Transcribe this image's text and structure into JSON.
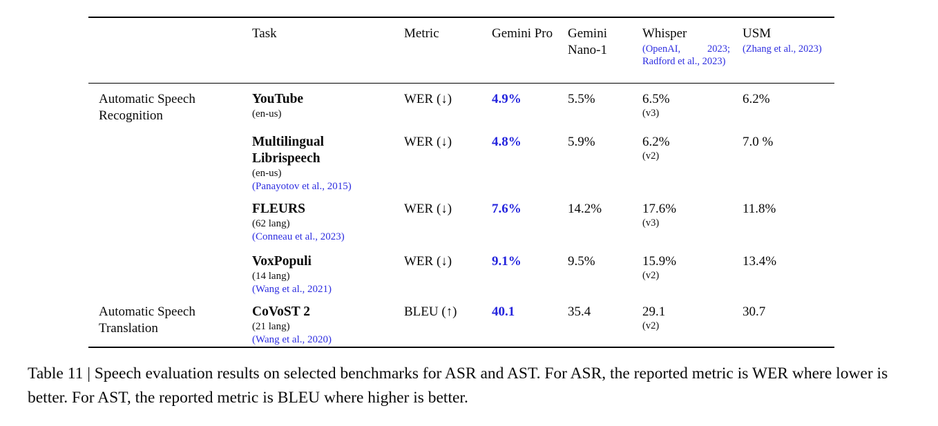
{
  "colors": {
    "link_blue": "#2d2de0",
    "best_value_blue": "#2424dd",
    "rule_black": "#000000"
  },
  "table": {
    "headers": {
      "group": "",
      "task": "Task",
      "metric": "Metric",
      "gemini_pro": "Gemini Pro",
      "gemini_nano": "Gemini Nano-1",
      "whisper_name": "Whisper",
      "whisper_citation": "(OpenAI, 2023; Radford et al., 2023)",
      "usm_name": "USM",
      "usm_citation": "(Zhang et al., 2023)"
    },
    "rows": [
      {
        "group": "Automatic Speech Recognition",
        "task": "YouTube",
        "task_note": "(en-us)",
        "task_citation": "",
        "metric": "WER (↓)",
        "gemini_pro": "4.9%",
        "gemini_nano": "5.5%",
        "whisper": "6.5%",
        "whisper_note": "(v3)",
        "usm": "6.2%"
      },
      {
        "group": "",
        "task": "Multilingual Librispeech",
        "task_note": "(en-us)",
        "task_citation": "(Panayotov et al., 2015)",
        "metric": "WER (↓)",
        "gemini_pro": "4.8%",
        "gemini_nano": "5.9%",
        "whisper": "6.2%",
        "whisper_note": "(v2)",
        "usm": "7.0 %"
      },
      {
        "group": "",
        "task": "FLEURS",
        "task_note": "(62 lang)",
        "task_citation": "(Conneau et al., 2023)",
        "metric": "WER (↓)",
        "gemini_pro": "7.6%",
        "gemini_nano": "14.2%",
        "whisper": "17.6%",
        "whisper_note": "(v3)",
        "usm": "11.8%"
      },
      {
        "group": "",
        "task": "VoxPopuli",
        "task_note": "(14 lang)",
        "task_citation": "(Wang et al., 2021)",
        "metric": "WER (↓)",
        "gemini_pro": "9.1%",
        "gemini_nano": "9.5%",
        "whisper": "15.9%",
        "whisper_note": "(v2)",
        "usm": "13.4%"
      },
      {
        "group": "Automatic Speech Translation",
        "task": "CoVoST 2",
        "task_note": "(21 lang)",
        "task_citation": "(Wang et al., 2020)",
        "metric": "BLEU (↑)",
        "gemini_pro": "40.1",
        "gemini_nano": "35.4",
        "whisper": "29.1",
        "whisper_note": "(v2)",
        "usm": "30.7"
      }
    ]
  },
  "caption": "Table 11 | Speech evaluation results on selected benchmarks for ASR and AST. For ASR, the reported metric is WER where lower is better. For AST, the reported metric is BLEU where higher is better."
}
